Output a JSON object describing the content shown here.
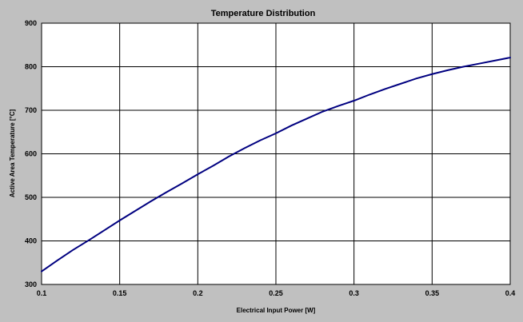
{
  "chart_data": {
    "type": "line",
    "title": "Temperature Distribution",
    "xlabel": "Electrical Input Power [W]",
    "ylabel": "Active Area Temperature [°C]",
    "xlim": [
      0.1,
      0.4
    ],
    "ylim": [
      300,
      900
    ],
    "xticks": [
      "0.1",
      "0.15",
      "0.2",
      "0.25",
      "0.3",
      "0.35",
      "0.4"
    ],
    "yticks": [
      "300",
      "400",
      "500",
      "600",
      "700",
      "800",
      "900"
    ],
    "grid": true,
    "legend": "none",
    "series": [
      {
        "color": "#000080",
        "x": [
          0.1,
          0.11,
          0.12,
          0.13,
          0.14,
          0.15,
          0.16,
          0.17,
          0.18,
          0.19,
          0.2,
          0.21,
          0.22,
          0.23,
          0.24,
          0.25,
          0.26,
          0.27,
          0.28,
          0.29,
          0.3,
          0.31,
          0.32,
          0.33,
          0.34,
          0.35,
          0.36,
          0.37,
          0.38,
          0.39,
          0.4
        ],
        "y": [
          330,
          355,
          379,
          401,
          424,
          447,
          469,
          491,
          512,
          532,
          553,
          573,
          594,
          613,
          631,
          647,
          665,
          681,
          697,
          710,
          722,
          736,
          749,
          761,
          773,
          783,
          792,
          800,
          807,
          814,
          821
        ]
      }
    ]
  },
  "colors": {
    "background": "#c0c0c0",
    "plot_area": "#ffffff",
    "grid": "#000000",
    "line": "#000080"
  }
}
